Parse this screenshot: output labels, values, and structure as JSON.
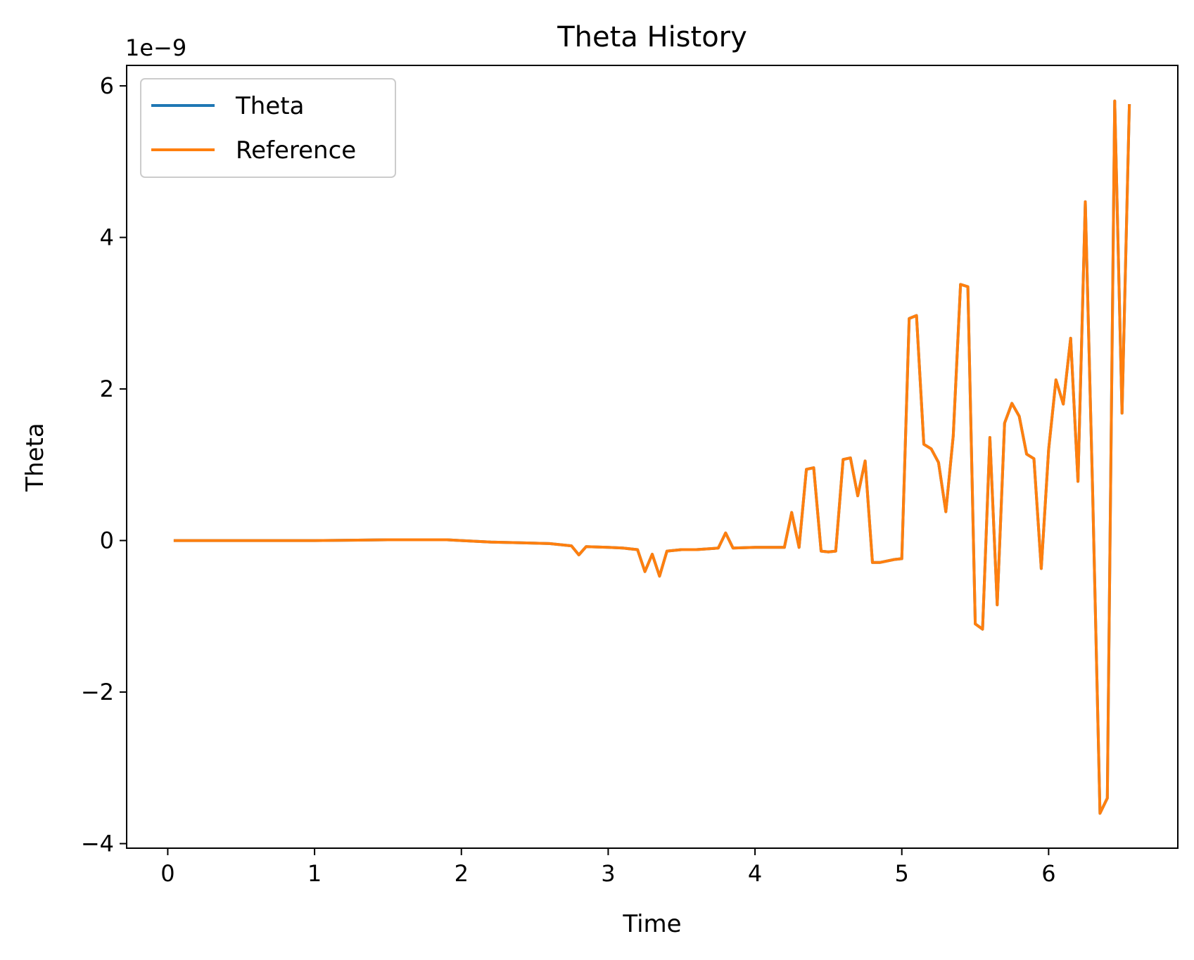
{
  "chart_data": {
    "type": "line",
    "title": "Theta History",
    "xlabel": "Time",
    "ylabel": "Theta",
    "y_offset_label": "1e−9",
    "xlim": [
      -0.28,
      6.88
    ],
    "ylim": [
      -4.06,
      6.27
    ],
    "x_ticks": [
      0,
      1,
      2,
      3,
      4,
      5,
      6
    ],
    "x_tick_labels": [
      "0",
      "1",
      "2",
      "3",
      "4",
      "5",
      "6"
    ],
    "y_ticks": [
      -4,
      -2,
      0,
      2,
      4,
      6
    ],
    "y_tick_labels": [
      "−4",
      "−2",
      "0",
      "2",
      "4",
      "6"
    ],
    "grid": false,
    "legend_position": "upper left",
    "series": [
      {
        "name": "Theta",
        "color": "#1f77b4",
        "x": [
          0.05,
          0.5,
          1.0,
          1.5,
          1.9,
          2.0,
          2.2,
          2.4,
          2.6,
          2.75,
          2.8,
          2.85,
          3.0,
          3.1,
          3.2,
          3.25,
          3.3,
          3.35,
          3.4,
          3.5,
          3.6,
          3.75,
          3.8,
          3.85,
          4.0,
          4.2,
          4.25,
          4.3,
          4.35,
          4.4,
          4.45,
          4.5,
          4.55,
          4.6,
          4.65,
          4.7,
          4.75,
          4.8,
          4.85,
          4.95,
          5.0,
          5.05,
          5.1,
          5.15,
          5.2,
          5.25,
          5.3,
          5.35,
          5.4,
          5.45,
          5.5,
          5.55,
          5.6,
          5.65,
          5.7,
          5.75,
          5.8,
          5.85,
          5.9,
          5.95,
          6.0,
          6.05,
          6.1,
          6.15,
          6.2,
          6.25,
          6.3,
          6.35,
          6.4,
          6.45,
          6.5,
          6.55
        ],
        "y": [
          0.0,
          0.0,
          0.0,
          0.01,
          0.01,
          0.0,
          -0.02,
          -0.03,
          -0.04,
          -0.07,
          -0.19,
          -0.08,
          -0.09,
          -0.1,
          -0.12,
          -0.41,
          -0.18,
          -0.47,
          -0.14,
          -0.12,
          -0.12,
          -0.1,
          0.1,
          -0.1,
          -0.09,
          -0.09,
          0.37,
          -0.09,
          0.94,
          0.96,
          -0.14,
          -0.15,
          -0.14,
          1.07,
          1.09,
          0.59,
          1.05,
          -0.29,
          -0.29,
          -0.25,
          -0.24,
          2.93,
          2.97,
          1.27,
          1.21,
          1.03,
          0.38,
          1.38,
          3.38,
          3.35,
          -1.1,
          -1.17,
          1.36,
          -0.85,
          1.55,
          1.81,
          1.64,
          1.14,
          1.08,
          -0.37,
          1.2,
          2.12,
          1.8,
          2.67,
          0.78,
          4.47,
          0.62,
          -3.6,
          -3.4,
          5.8,
          1.68,
          5.74
        ]
      },
      {
        "name": "Reference",
        "color": "#ff7f0e",
        "x": [
          0.05,
          0.5,
          1.0,
          1.5,
          1.9,
          2.0,
          2.2,
          2.4,
          2.6,
          2.75,
          2.8,
          2.85,
          3.0,
          3.1,
          3.2,
          3.25,
          3.3,
          3.35,
          3.4,
          3.5,
          3.6,
          3.75,
          3.8,
          3.85,
          4.0,
          4.2,
          4.25,
          4.3,
          4.35,
          4.4,
          4.45,
          4.5,
          4.55,
          4.6,
          4.65,
          4.7,
          4.75,
          4.8,
          4.85,
          4.95,
          5.0,
          5.05,
          5.1,
          5.15,
          5.2,
          5.25,
          5.3,
          5.35,
          5.4,
          5.45,
          5.5,
          5.55,
          5.6,
          5.65,
          5.7,
          5.75,
          5.8,
          5.85,
          5.9,
          5.95,
          6.0,
          6.05,
          6.1,
          6.15,
          6.2,
          6.25,
          6.3,
          6.35,
          6.4,
          6.45,
          6.5,
          6.55
        ],
        "y": [
          0.0,
          0.0,
          0.0,
          0.01,
          0.01,
          0.0,
          -0.02,
          -0.03,
          -0.04,
          -0.07,
          -0.19,
          -0.08,
          -0.09,
          -0.1,
          -0.12,
          -0.41,
          -0.18,
          -0.47,
          -0.14,
          -0.12,
          -0.12,
          -0.1,
          0.1,
          -0.1,
          -0.09,
          -0.09,
          0.37,
          -0.09,
          0.94,
          0.96,
          -0.14,
          -0.15,
          -0.14,
          1.07,
          1.09,
          0.59,
          1.05,
          -0.29,
          -0.29,
          -0.25,
          -0.24,
          2.93,
          2.97,
          1.27,
          1.21,
          1.03,
          0.38,
          1.38,
          3.38,
          3.35,
          -1.1,
          -1.17,
          1.36,
          -0.85,
          1.55,
          1.81,
          1.64,
          1.14,
          1.08,
          -0.37,
          1.2,
          2.12,
          1.8,
          2.67,
          0.78,
          4.47,
          0.62,
          -3.6,
          -3.4,
          5.8,
          1.68,
          5.74
        ]
      }
    ]
  }
}
